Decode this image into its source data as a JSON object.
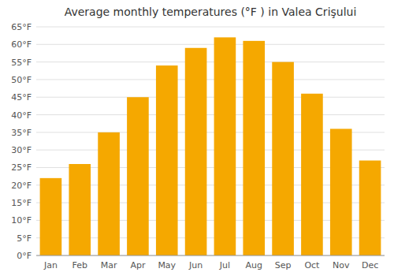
{
  "chart_data": {
    "type": "bar",
    "title": "Average monthly temperatures (°F ) in Valea Crişului",
    "categories": [
      "Jan",
      "Feb",
      "Mar",
      "Apr",
      "May",
      "Jun",
      "Jul",
      "Aug",
      "Sep",
      "Oct",
      "Nov",
      "Dec"
    ],
    "values": [
      22,
      26,
      35,
      45,
      54,
      59,
      62,
      61,
      55,
      46,
      36,
      27
    ],
    "color": "#F5A800",
    "ylim": [
      0,
      65
    ],
    "yticks": [
      {
        "value": 0,
        "label": "0°F"
      },
      {
        "value": 5,
        "label": "5°F"
      },
      {
        "value": 10,
        "label": "10°F"
      },
      {
        "value": 15,
        "label": "15°F"
      },
      {
        "value": 20,
        "label": "20°F"
      },
      {
        "value": 25,
        "label": "25°F"
      },
      {
        "value": 30,
        "label": "30°F"
      },
      {
        "value": 35,
        "label": "35°F"
      },
      {
        "value": 40,
        "label": "40°F"
      },
      {
        "value": 45,
        "label": "45°F"
      },
      {
        "value": 50,
        "label": "50°F"
      },
      {
        "value": 55,
        "label": "55°F"
      },
      {
        "value": 60,
        "label": "60°F"
      },
      {
        "value": 65,
        "label": "65°F"
      }
    ],
    "grid": true
  }
}
